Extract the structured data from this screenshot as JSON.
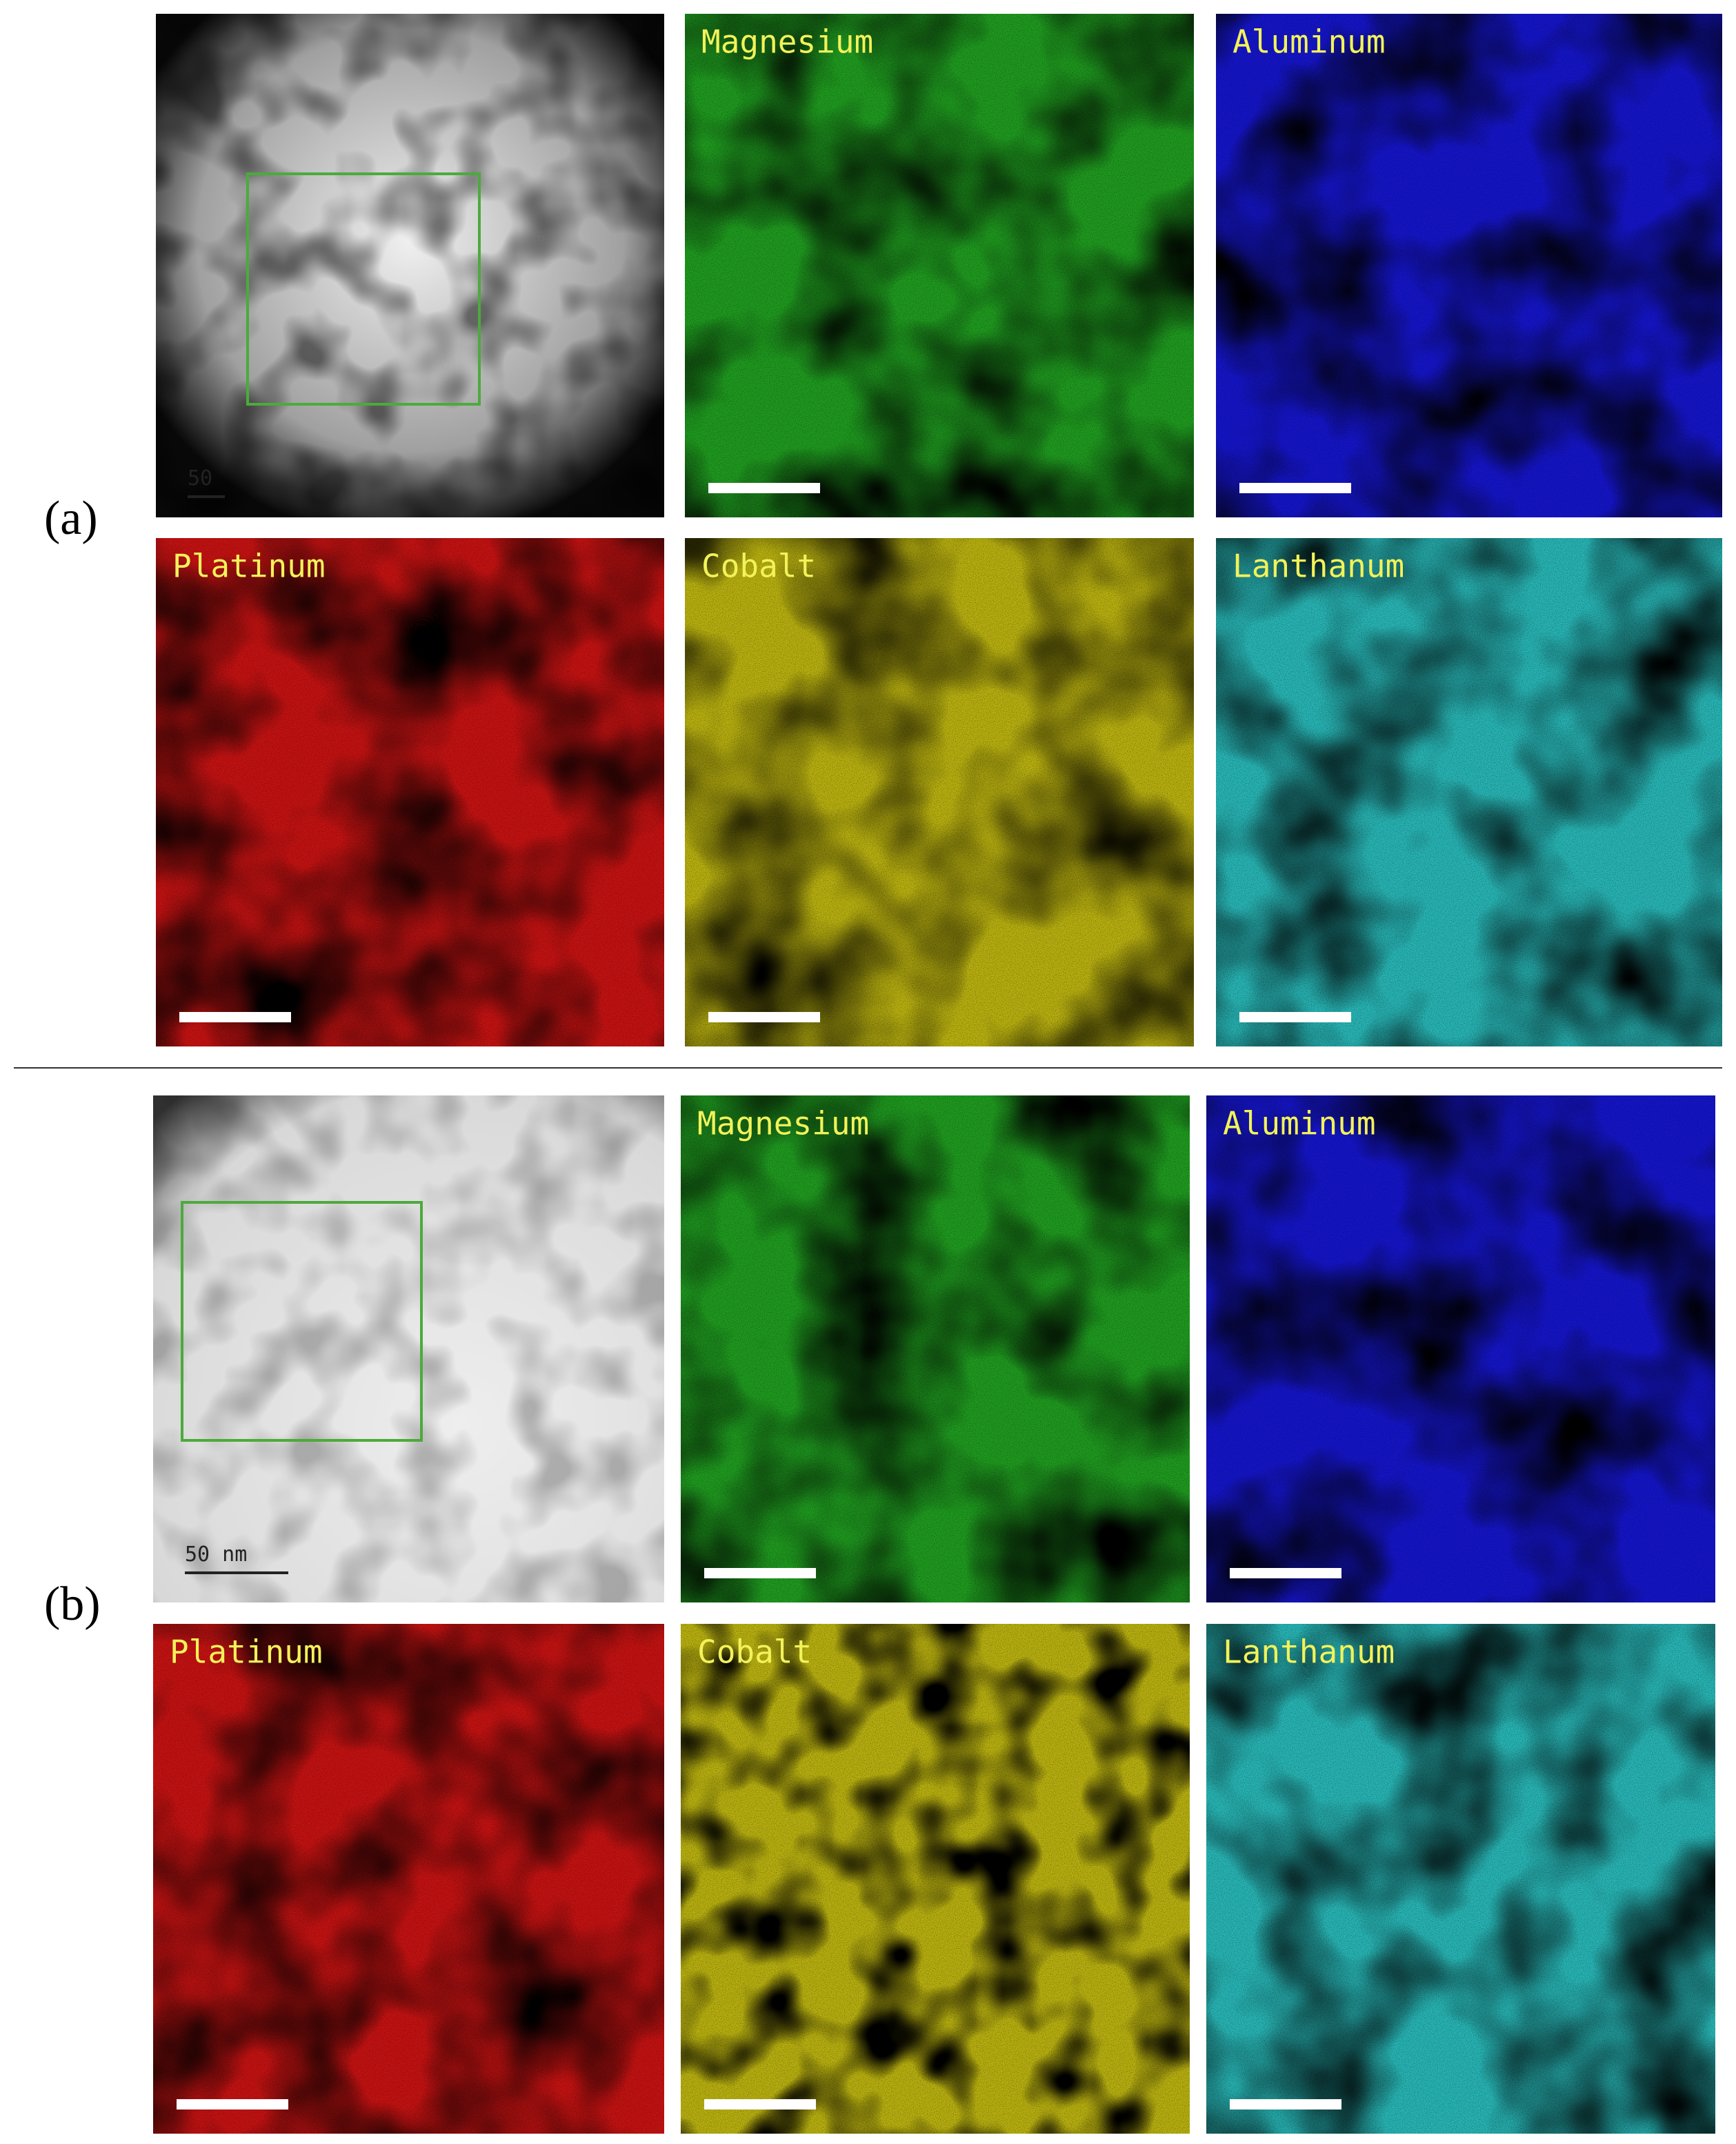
{
  "panels": [
    {
      "label": "(a)",
      "tiles": [
        {
          "scale_label": "50"
        },
        {
          "label": "Magnesium"
        },
        {
          "label": "Aluminum"
        },
        {
          "label": "Platinum"
        },
        {
          "label": "Cobalt"
        },
        {
          "label": "Lanthanum"
        }
      ]
    },
    {
      "label": "(b)",
      "tiles": [
        {
          "scale_label": "50 nm"
        },
        {
          "label": "Magnesium"
        },
        {
          "label": "Aluminum"
        },
        {
          "label": "Platinum"
        },
        {
          "label": "Cobalt"
        },
        {
          "label": "Lanthanum"
        }
      ]
    }
  ]
}
